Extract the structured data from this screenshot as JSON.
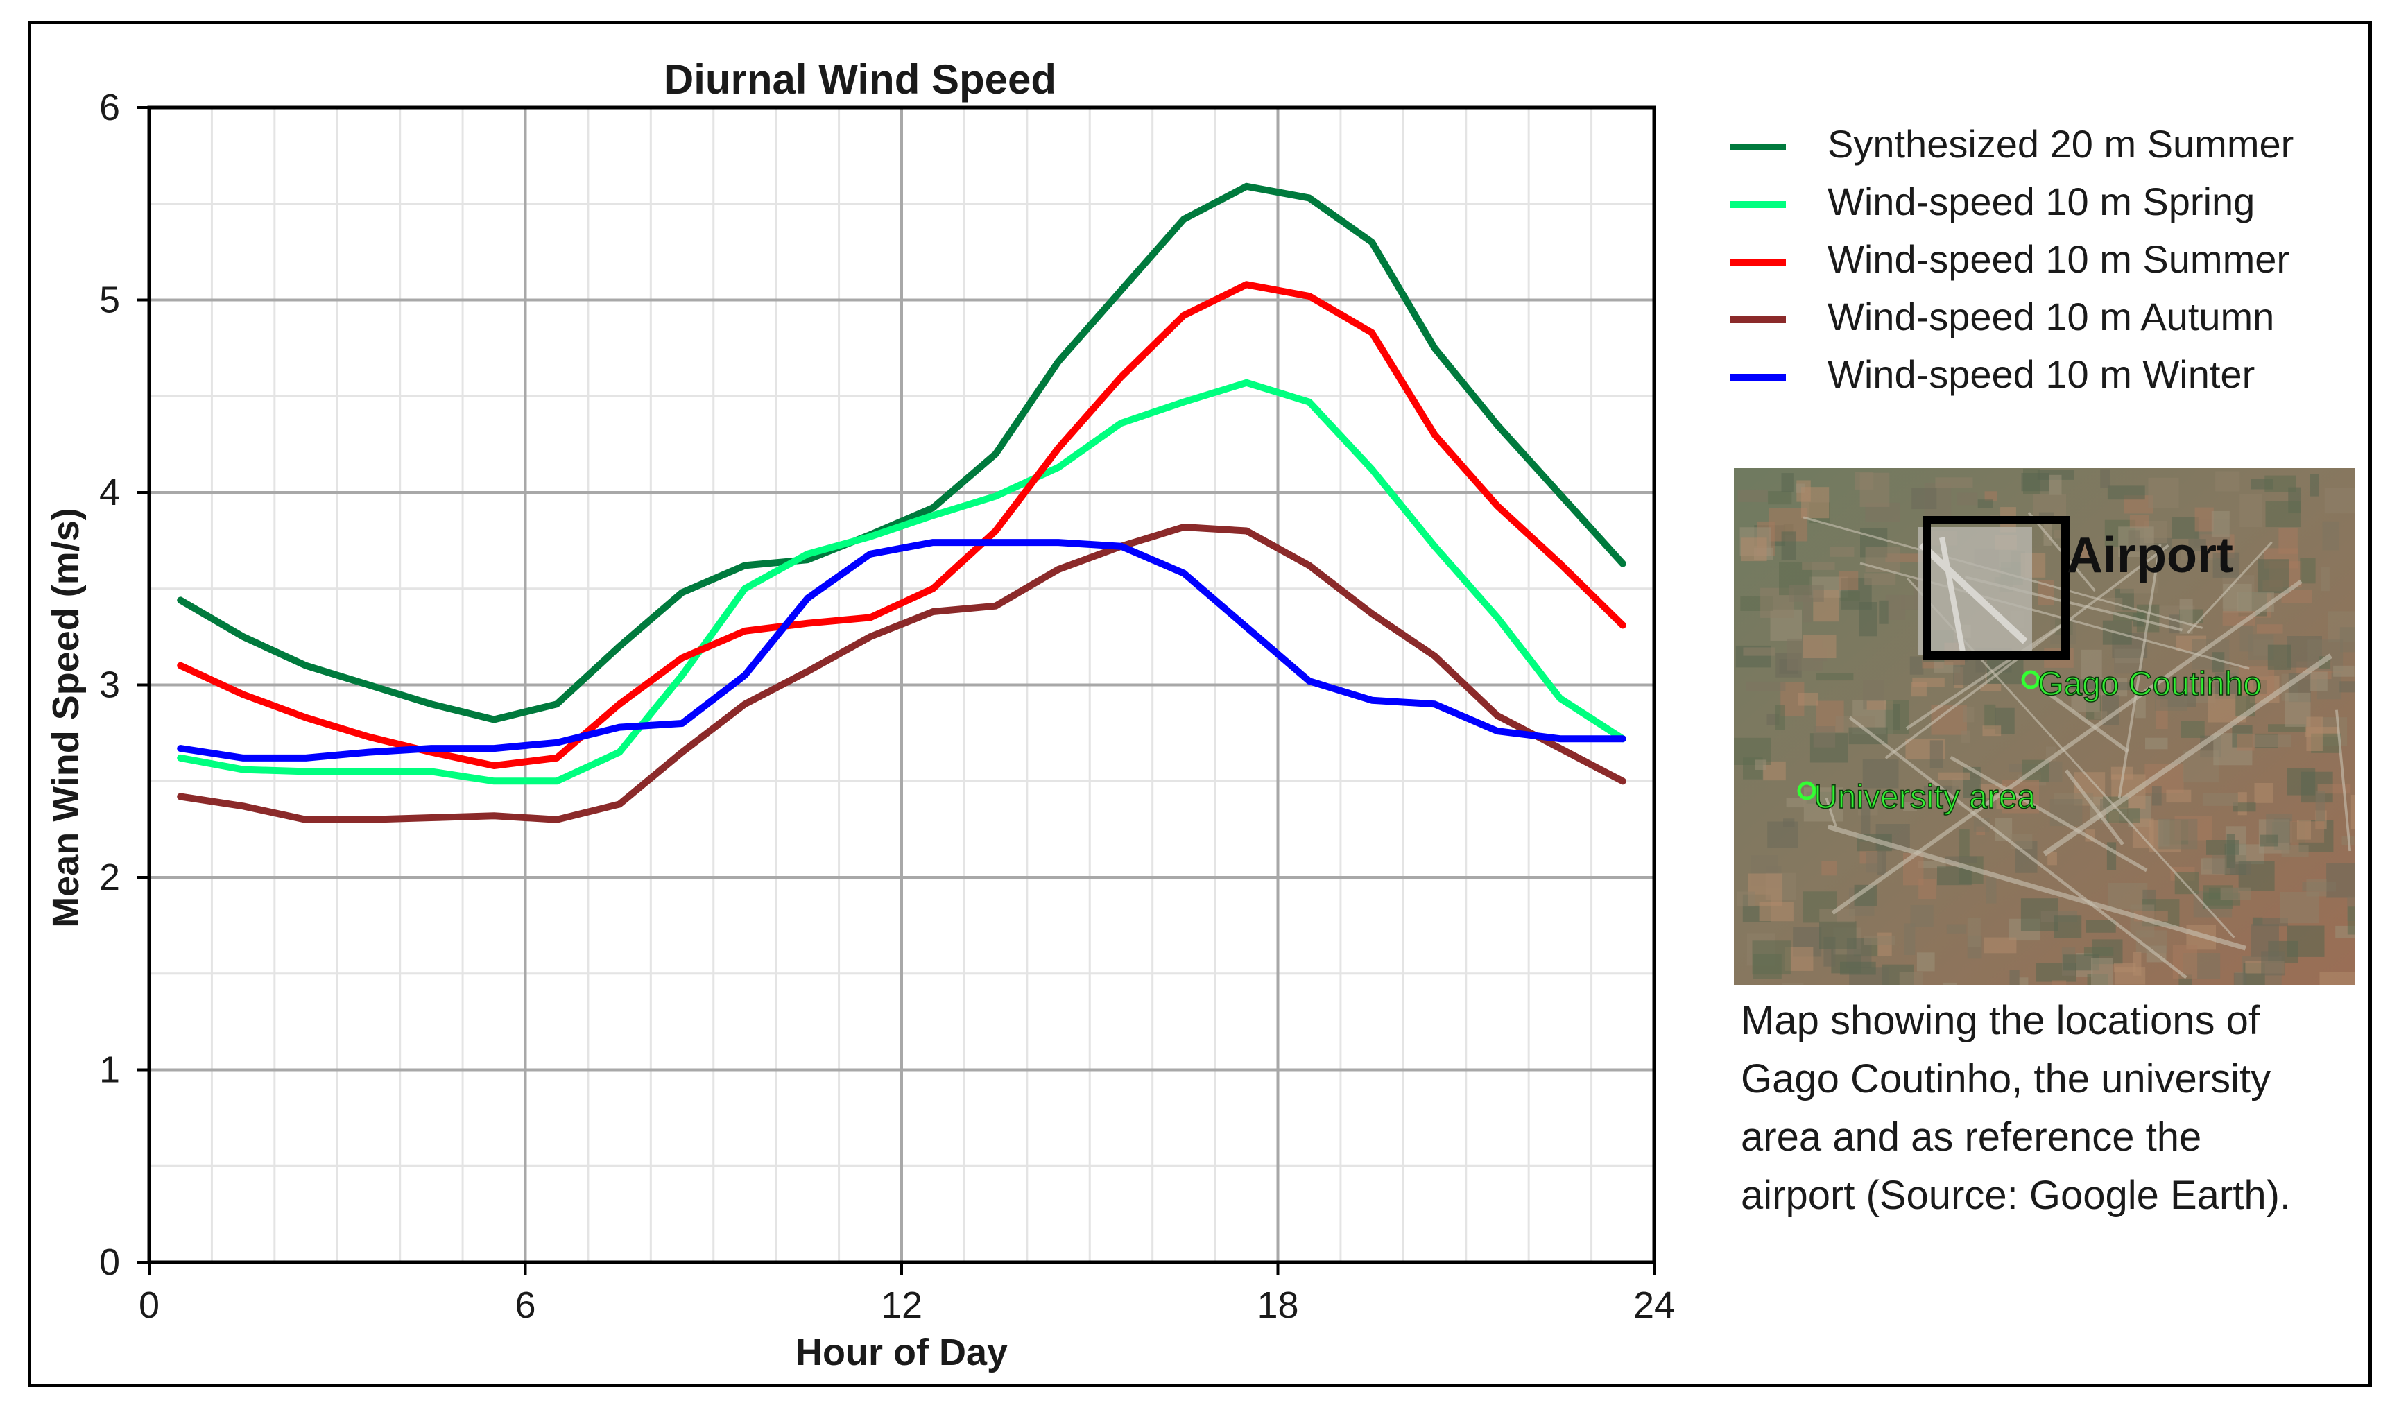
{
  "chart_data": {
    "type": "line",
    "title": "Diurnal Wind Speed",
    "xlabel": "Hour of Day",
    "ylabel": "Mean Wind Speed (m/s)",
    "xlim": [
      0,
      24
    ],
    "ylim": [
      0,
      6
    ],
    "xticks": [
      0,
      6,
      12,
      18,
      24
    ],
    "yticks": [
      0,
      1,
      2,
      3,
      4,
      5,
      6
    ],
    "grid": true,
    "legend_position": "right",
    "x": [
      0.5,
      1.5,
      2.5,
      3.5,
      4.5,
      5.5,
      6.5,
      7.5,
      8.5,
      9.5,
      10.5,
      11.5,
      12.5,
      13.5,
      14.5,
      15.5,
      16.5,
      17.5,
      18.5,
      19.5,
      20.5,
      21.5,
      22.5,
      23.5
    ],
    "series": [
      {
        "name": "Synthesized 20 m Summer",
        "color": "#007a3d",
        "values": [
          3.44,
          3.25,
          3.1,
          3.0,
          2.9,
          2.82,
          2.9,
          3.2,
          3.48,
          3.62,
          3.65,
          3.78,
          3.92,
          4.2,
          4.68,
          5.05,
          5.42,
          5.59,
          5.53,
          5.3,
          4.75,
          4.35,
          3.99,
          3.63
        ]
      },
      {
        "name": "Wind-speed 10 m Spring",
        "color": "#00ff7f",
        "values": [
          2.62,
          2.56,
          2.55,
          2.55,
          2.55,
          2.5,
          2.5,
          2.65,
          3.05,
          3.5,
          3.68,
          3.77,
          3.88,
          3.98,
          4.13,
          4.36,
          4.47,
          4.57,
          4.47,
          4.12,
          3.72,
          3.35,
          2.93,
          2.72
        ]
      },
      {
        "name": "Wind-speed 10 m Summer",
        "color": "#ff0000",
        "values": [
          3.1,
          2.95,
          2.83,
          2.73,
          2.65,
          2.58,
          2.62,
          2.9,
          3.14,
          3.28,
          3.32,
          3.35,
          3.5,
          3.8,
          4.23,
          4.6,
          4.92,
          5.08,
          5.02,
          4.83,
          4.3,
          3.93,
          3.63,
          3.31
        ]
      },
      {
        "name": "Wind-speed 10 m Autumn",
        "color": "#8b2a2a",
        "values": [
          2.42,
          2.37,
          2.3,
          2.3,
          2.31,
          2.32,
          2.3,
          2.38,
          2.65,
          2.9,
          3.07,
          3.25,
          3.38,
          3.41,
          3.6,
          3.72,
          3.82,
          3.8,
          3.62,
          3.37,
          3.15,
          2.84,
          2.67,
          2.5
        ]
      },
      {
        "name": "Wind-speed 10 m Winter",
        "color": "#0000ff",
        "values": [
          2.67,
          2.62,
          2.62,
          2.65,
          2.67,
          2.67,
          2.7,
          2.78,
          2.8,
          3.05,
          3.45,
          3.68,
          3.74,
          3.74,
          3.74,
          3.72,
          3.58,
          3.3,
          3.02,
          2.92,
          2.9,
          2.76,
          2.72,
          2.72
        ]
      }
    ]
  },
  "map": {
    "airport_label": "Airport",
    "gago_label": "Gago Coutinho",
    "university_label": "University area",
    "bg_color": "#7a7560"
  },
  "caption": {
    "line1": "Map showing the locations of",
    "line2": "Gago Coutinho, the university",
    "line3": "area and as reference the",
    "line4": "airport (Source: Google Earth)."
  }
}
